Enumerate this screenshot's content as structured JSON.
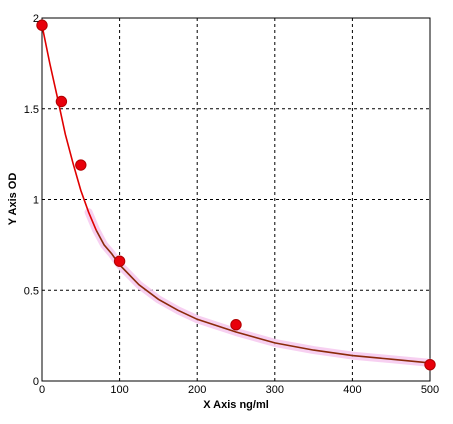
{
  "chart_data": {
    "type": "scatter",
    "xlabel": "X Axis ng/ml",
    "ylabel": "Y Axis OD",
    "xlim": [
      0,
      500
    ],
    "ylim": [
      0,
      2
    ],
    "x_ticks": [
      "0",
      "100",
      "200",
      "300",
      "400",
      "500"
    ],
    "y_ticks": [
      "0",
      "0.5",
      "1",
      "1.5",
      "2"
    ],
    "grid": true,
    "series": [
      {
        "points": [
          {
            "x": 0,
            "y": 1.96
          },
          {
            "x": 25,
            "y": 1.54
          },
          {
            "x": 50,
            "y": 1.19
          },
          {
            "x": 100,
            "y": 0.66
          },
          {
            "x": 250,
            "y": 0.31
          },
          {
            "x": 500,
            "y": 0.09
          }
        ],
        "color": "#e8000b"
      }
    ],
    "fit_curve": {
      "x": [
        0,
        10,
        20,
        30,
        40,
        50,
        60,
        70,
        80,
        90,
        100,
        125,
        150,
        175,
        200,
        250,
        300,
        350,
        400,
        450,
        500
      ],
      "y": [
        1.96,
        1.75,
        1.56,
        1.36,
        1.2,
        1.05,
        0.93,
        0.83,
        0.75,
        0.7,
        0.64,
        0.53,
        0.45,
        0.39,
        0.34,
        0.27,
        0.21,
        0.17,
        0.14,
        0.12,
        0.1
      ],
      "colors": [
        "#e00000",
        "#8b2a0a"
      ],
      "band_color": "#f6c8ee"
    }
  }
}
